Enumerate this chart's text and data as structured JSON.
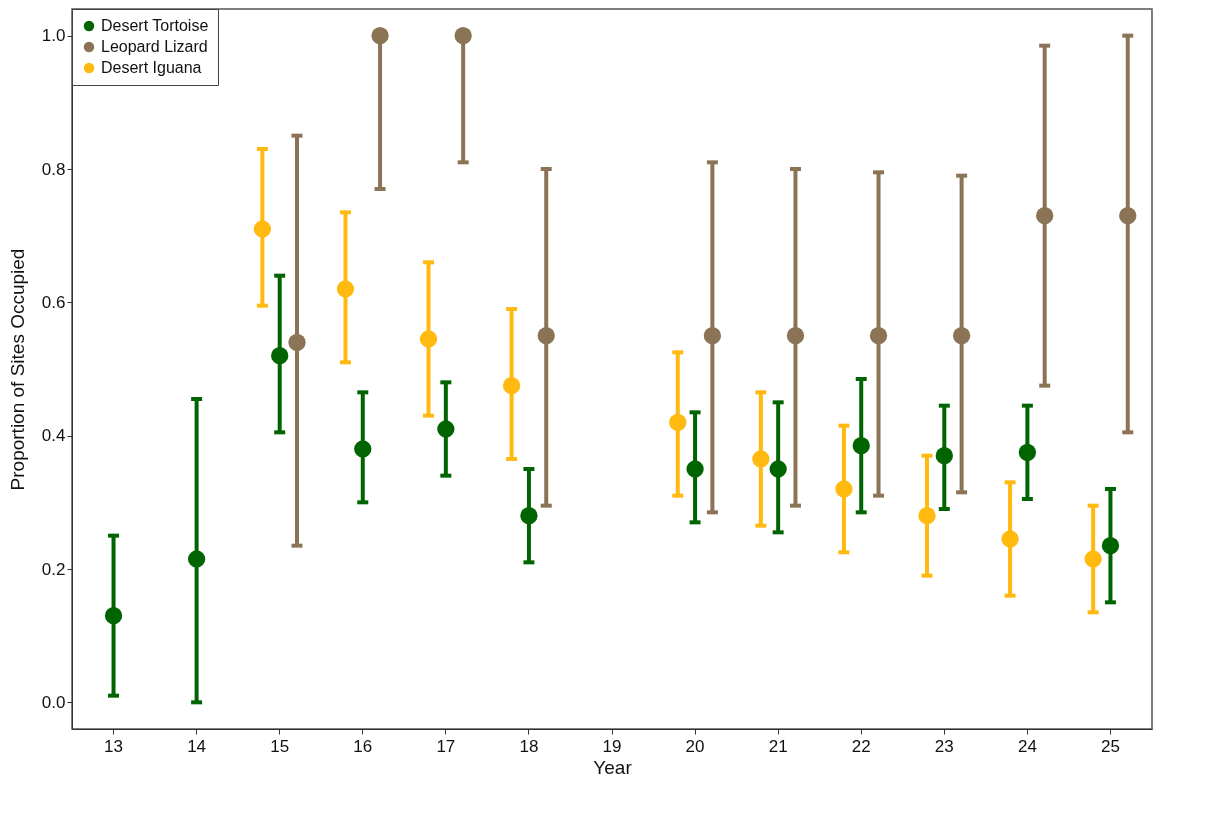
{
  "chart_data": {
    "type": "scatter",
    "xlabel": "Year",
    "ylabel": "Proportion of Sites Occupied",
    "categories": [
      "13",
      "14",
      "15",
      "16",
      "17",
      "18",
      "19",
      "20",
      "21",
      "22",
      "23",
      "24",
      "25"
    ],
    "series": [
      {
        "name": "Desert Tortoise",
        "color": "#006400",
        "values": [
          0.13,
          0.215,
          0.52,
          0.38,
          0.41,
          0.28,
          null,
          0.35,
          0.35,
          0.385,
          0.37,
          0.375,
          0.235
        ],
        "errors": [
          [
            0.01,
            0.25
          ],
          [
            0.0,
            0.455
          ],
          [
            0.405,
            0.64
          ],
          [
            0.3,
            0.465
          ],
          [
            0.34,
            0.48
          ],
          [
            0.21,
            0.35
          ],
          null,
          [
            0.27,
            0.435
          ],
          [
            0.255,
            0.45
          ],
          [
            0.285,
            0.485
          ],
          [
            0.29,
            0.445
          ],
          [
            0.305,
            0.445
          ],
          [
            0.15,
            0.32
          ]
        ]
      },
      {
        "name": "Leopard Lizard",
        "color": "#8b7355",
        "values": [
          null,
          null,
          0.54,
          1.0,
          1.0,
          0.55,
          null,
          0.55,
          0.55,
          0.55,
          0.55,
          0.73,
          0.73
        ],
        "errors": [
          null,
          null,
          [
            0.235,
            0.85
          ],
          [
            0.77,
            1.0
          ],
          [
            0.81,
            1.0
          ],
          [
            0.295,
            0.8
          ],
          null,
          [
            0.285,
            0.81
          ],
          [
            0.295,
            0.8
          ],
          [
            0.31,
            0.795
          ],
          [
            0.315,
            0.79
          ],
          [
            0.475,
            0.985
          ],
          [
            0.405,
            1.0
          ]
        ]
      },
      {
        "name": "Desert Iguana",
        "color": "#ffb90f",
        "values": [
          null,
          null,
          0.71,
          0.62,
          0.545,
          0.475,
          null,
          0.42,
          0.365,
          0.32,
          0.28,
          0.245,
          0.215
        ],
        "errors": [
          null,
          null,
          [
            0.595,
            0.83
          ],
          [
            0.51,
            0.735
          ],
          [
            0.43,
            0.66
          ],
          [
            0.365,
            0.59
          ],
          null,
          [
            0.31,
            0.525
          ],
          [
            0.265,
            0.465
          ],
          [
            0.225,
            0.415
          ],
          [
            0.19,
            0.37
          ],
          [
            0.16,
            0.33
          ],
          [
            0.135,
            0.295
          ]
        ]
      }
    ],
    "ylim": [
      -0.04,
      1.04
    ],
    "yticks": [
      {
        "value": 0,
        "label": "0.0"
      },
      {
        "value": 0.2,
        "label": "0.2"
      },
      {
        "value": 0.4,
        "label": "0.4"
      },
      {
        "value": 0.6,
        "label": "0.6"
      },
      {
        "value": 0.8,
        "label": "0.8"
      },
      {
        "value": 1,
        "label": "1.0"
      }
    ],
    "legend": "top left",
    "marker": "circle"
  }
}
